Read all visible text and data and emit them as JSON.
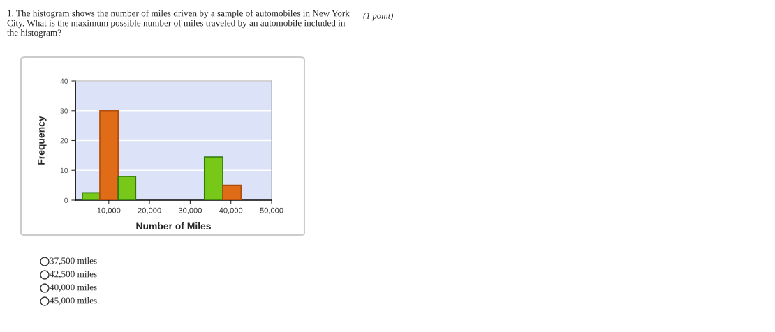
{
  "chart_data": {
    "type": "histogram",
    "title": "1. The histogram shows the number of miles driven by a sample of automobiles in New York City. What is the maximum possible number of miles traveled by an automobile included in the histogram?",
    "xlabel": "Number of Miles",
    "ylabel": "Frequency",
    "bins": [
      3500,
      7800,
      12300,
      16600,
      33500,
      38000,
      42500
    ],
    "values": [
      2.5,
      30,
      8,
      0,
      14.5,
      5
    ],
    "colors": [
      "#78c81a",
      "#e06c18",
      "#78c81a",
      "#78c81a",
      "#78c81a",
      "#e06c18"
    ],
    "xlim": [
      1800,
      50000
    ],
    "xticks": [
      {
        "value": 10000,
        "label": "10,000"
      },
      {
        "value": 20000,
        "label": "20,000"
      },
      {
        "value": 30000,
        "label": "30,000"
      },
      {
        "value": 40000,
        "label": "40,000"
      },
      {
        "value": 50000,
        "label": "50,000"
      }
    ],
    "ylim": [
      0,
      40
    ],
    "yticks": [
      0,
      10,
      20,
      30,
      40
    ],
    "grid": "y",
    "annotations": [
      "(1 point)",
      "37,500 miles",
      "42,500 miles",
      "40,000 miles",
      "45,000 miles"
    ]
  }
}
